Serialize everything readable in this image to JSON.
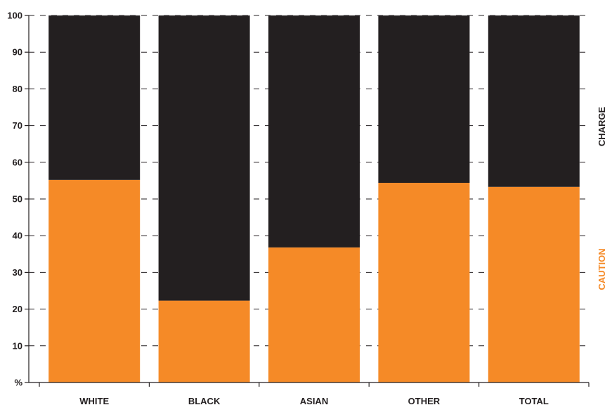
{
  "chart_data": {
    "type": "bar",
    "stacked": true,
    "percent": true,
    "categories": [
      "WHITE",
      "BLACK",
      "ASIAN",
      "OTHER",
      "TOTAL"
    ],
    "series": [
      {
        "name": "CAUTION",
        "color": "#f58a27",
        "values": [
          55.2,
          22.3,
          36.8,
          54.4,
          53.3
        ]
      },
      {
        "name": "CHARGE",
        "color": "#231f20",
        "values": [
          44.8,
          77.7,
          63.2,
          45.6,
          46.7
        ]
      }
    ],
    "ylim": [
      0,
      100
    ],
    "yticks": [
      "%",
      "10",
      "20",
      "30",
      "40",
      "50",
      "60",
      "70",
      "80",
      "90",
      "100"
    ],
    "gridlines": "dashed",
    "legend_placement": "right"
  }
}
